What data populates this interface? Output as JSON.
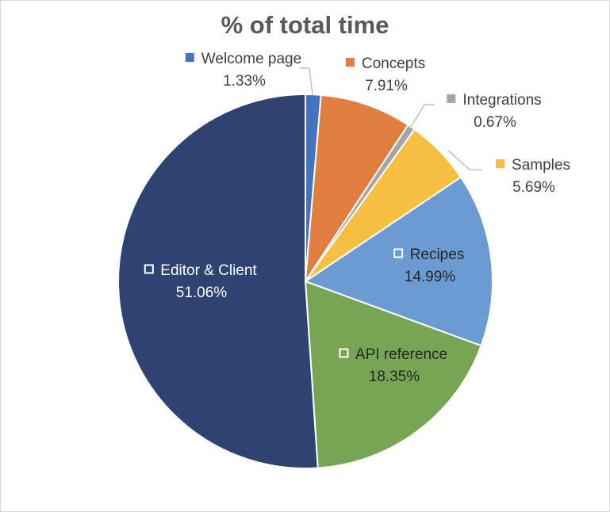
{
  "chart_data": {
    "type": "pie",
    "title": "% of total time",
    "slices": [
      {
        "name": "Welcome page",
        "label": "Welcome page",
        "value": 1.33,
        "value_label": "1.33%",
        "color": "#4472c4",
        "marker": "filled",
        "label_color": "#404040"
      },
      {
        "name": "Concepts",
        "label": "Concepts",
        "value": 7.91,
        "value_label": "7.91%",
        "color": "#e07e40",
        "marker": "filled",
        "label_color": "#404040"
      },
      {
        "name": "Integrations",
        "label": "Integrations",
        "value": 0.67,
        "value_label": "0.67%",
        "color": "#a5a5a5",
        "marker": "filled",
        "label_color": "#404040"
      },
      {
        "name": "Samples",
        "label": "Samples",
        "value": 5.69,
        "value_label": "5.69%",
        "color": "#f5bf42",
        "marker": "filled",
        "label_color": "#404040"
      },
      {
        "name": "Recipes",
        "label": "Recipes",
        "value": 14.99,
        "value_label": "14.99%",
        "color": "#6a9bd2",
        "marker": "outline",
        "label_color": "#262626"
      },
      {
        "name": "API reference",
        "label": "API reference",
        "value": 18.35,
        "value_label": "18.35%",
        "color": "#77a553",
        "marker": "outline",
        "label_color": "#262626"
      },
      {
        "name": "Editor & Client",
        "label": "Editor & Client",
        "value": 51.06,
        "value_label": "51.06%",
        "color": "#2e4372",
        "marker": "outline",
        "label_color": "#ffffff"
      }
    ],
    "legend": "none",
    "start_angle": "12 o'clock",
    "direction": "clockwise"
  }
}
